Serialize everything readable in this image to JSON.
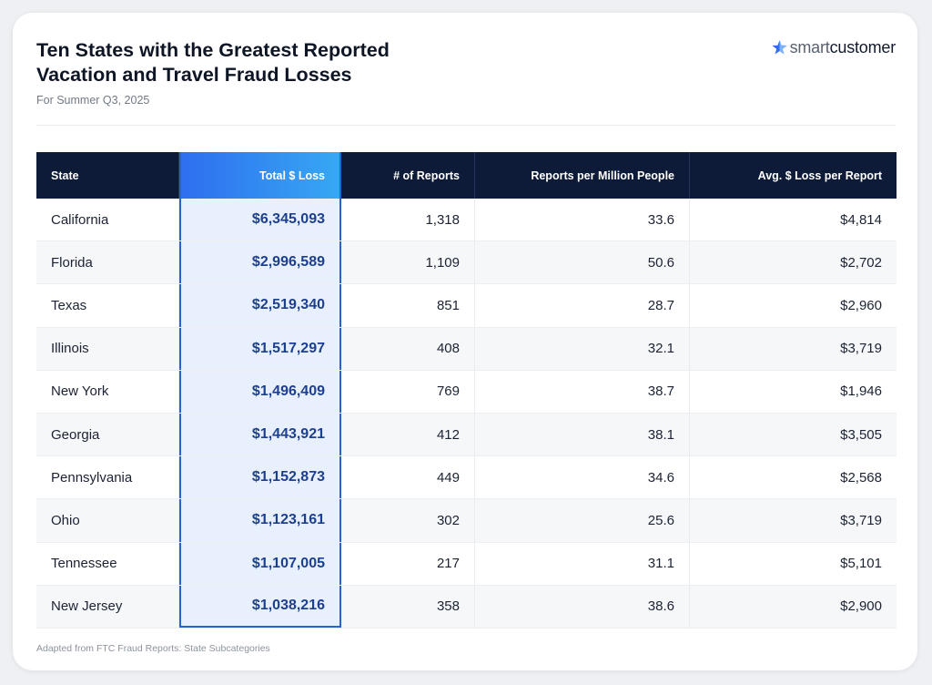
{
  "header": {
    "title_line1": "Ten States with the Greatest Reported",
    "title_line2": "Vacation and Travel Fraud Losses",
    "subtitle": "For Summer Q3, 2025"
  },
  "logo": {
    "icon": "star-icon",
    "part1": "smart",
    "part2": "customer",
    "colors": {
      "star": "#2f6ef0",
      "part1": "#5a6270",
      "part2": "#111a2b"
    }
  },
  "footer": {
    "source": "Adapted from FTC Fraud Reports: State Subcategories"
  },
  "colors": {
    "header_bg": "#0d1b38",
    "highlight_column": "#e9f0fd",
    "highlight_text": "#1d3f8f",
    "highlight_border": "#2b5fd6",
    "highlight_header_gradient": [
      "#2f6ef0",
      "#36a8f2"
    ]
  },
  "chart_data": {
    "type": "table",
    "columns": [
      "State",
      "Total $ Loss",
      "# of Reports",
      "Reports per Million People",
      "Avg. $ Loss per Report"
    ],
    "rows": [
      [
        "California",
        "$6,345,093",
        "1,318",
        "33.6",
        "$4,814"
      ],
      [
        "Florida",
        "$2,996,589",
        "1,109",
        "50.6",
        "$2,702"
      ],
      [
        "Texas",
        "$2,519,340",
        "851",
        "28.7",
        "$2,960"
      ],
      [
        "Illinois",
        "$1,517,297",
        "408",
        "32.1",
        "$3,719"
      ],
      [
        "New York",
        "$1,496,409",
        "769",
        "38.7",
        "$1,946"
      ],
      [
        "Georgia",
        "$1,443,921",
        "412",
        "38.1",
        "$3,505"
      ],
      [
        "Pennsylvania",
        "$1,152,873",
        "449",
        "34.6",
        "$2,568"
      ],
      [
        "Ohio",
        "$1,123,161",
        "302",
        "25.6",
        "$3,719"
      ],
      [
        "Tennessee",
        "$1,107,005",
        "217",
        "31.1",
        "$5,101"
      ],
      [
        "New Jersey",
        "$1,038,216",
        "358",
        "38.6",
        "$2,900"
      ]
    ],
    "highlighted_column": "Total $ Loss"
  }
}
